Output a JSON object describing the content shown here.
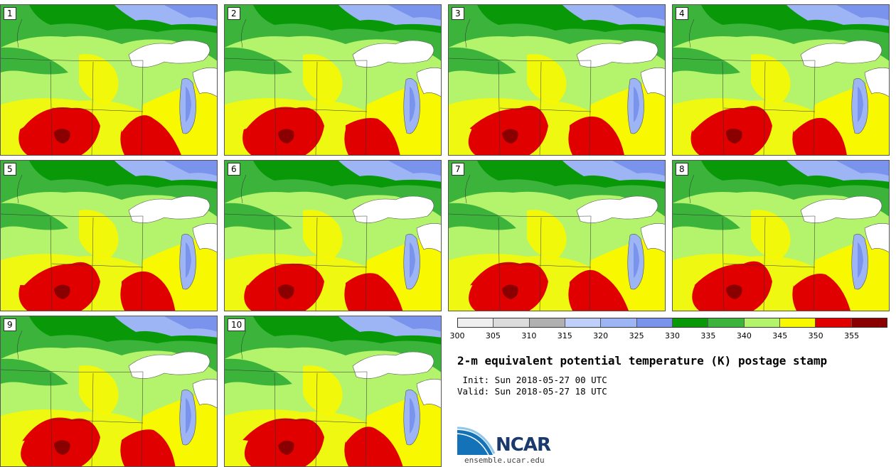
{
  "title": "2-m equivalent potential temperature (K) postage stamp",
  "init_label": " Init: Sun 2018-05-27 00 UTC",
  "valid_label": "Valid: Sun 2018-05-27 18 UTC",
  "logo_text": "NCAR",
  "url": "ensemble.ucar.edu",
  "members": [
    "1",
    "2",
    "3",
    "4",
    "5",
    "6",
    "7",
    "8",
    "9",
    "10"
  ],
  "colorbar": {
    "ticks": [
      "300",
      "305",
      "310",
      "315",
      "320",
      "325",
      "330",
      "335",
      "340",
      "345",
      "350",
      "355"
    ],
    "colors": [
      "#efefef",
      "#dcdcdc",
      "#b0b0b0",
      "#bfcff9",
      "#9db5f5",
      "#7a94ee",
      "#089808",
      "#3cb43c",
      "#b4f36c",
      "#f8f800",
      "#e00000",
      "#8a0000"
    ]
  },
  "map_colors": {
    "blue_dark": "#7a94ee",
    "blue_light": "#9db5f5",
    "green_dark": "#089808",
    "green": "#3cb43c",
    "green_light": "#b4f36c",
    "yellow": "#f8f800",
    "red": "#e00000",
    "red_dark": "#8a0000",
    "lake": "#ffffff"
  }
}
